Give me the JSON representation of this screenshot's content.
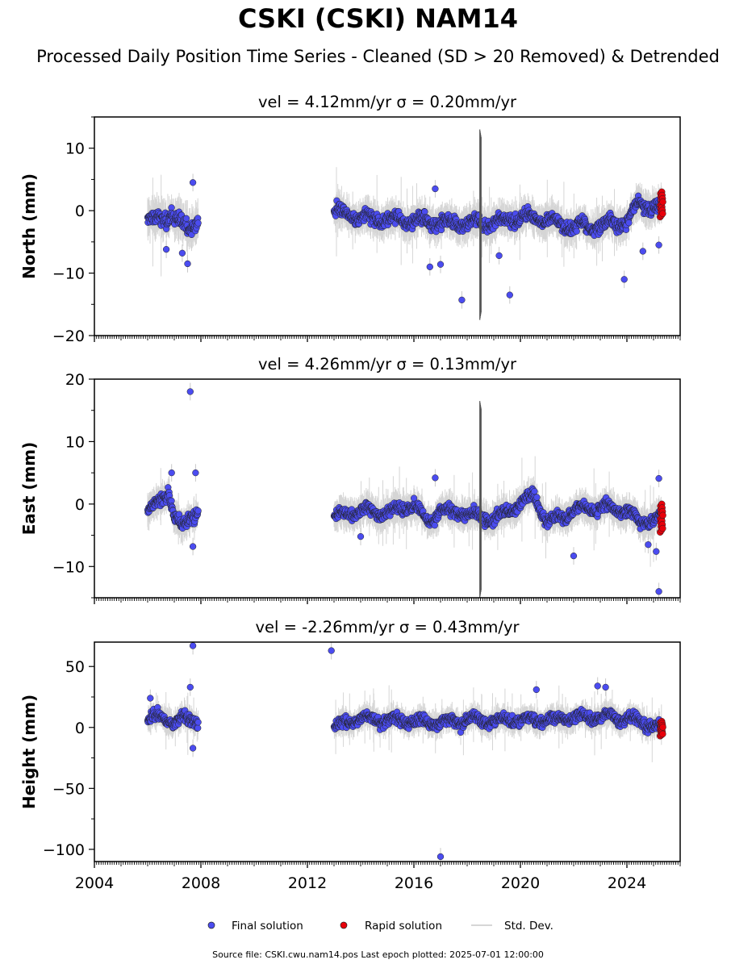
{
  "title": "CSKI (CSKI) NAM14",
  "subtitle": "Processed Daily Position Time Series - Cleaned (SD > 20 Removed) & Detrended",
  "source_note": "Source file: CSKI.cwu.nam14.pos  Last epoch plotted: 2025-07-01 12:00:00",
  "colors": {
    "final": "#4b4cf0",
    "rapid": "#e8000b",
    "std": "#c8c8c8",
    "outline": "#222222"
  },
  "legend": {
    "final": "Final solution",
    "rapid": "Rapid solution",
    "std": "Std. Dev."
  },
  "chart_data": [
    {
      "type": "scatter",
      "title": "vel = 4.12mm/yr   σ = 0.20mm/yr",
      "ylabel": "North (mm)",
      "xlim": [
        2004,
        2026
      ],
      "ylim": [
        -20,
        15
      ],
      "yticks": [
        -20,
        -10,
        0,
        10
      ],
      "xticks": [
        2004,
        2008,
        2012,
        2016,
        2020,
        2024
      ],
      "segments": [
        {
          "x0": 2006.0,
          "x1": 2007.9,
          "path": [
            [
              2006.0,
              -1
            ],
            [
              2006.3,
              -2
            ],
            [
              2006.6,
              -1
            ],
            [
              2006.9,
              -0.5
            ],
            [
              2007.2,
              -2
            ],
            [
              2007.5,
              -3
            ],
            [
              2007.9,
              -1
            ]
          ],
          "noise": 1.6,
          "sd": 2.5
        },
        {
          "x0": 2013.0,
          "x1": 2025.3,
          "path": [
            [
              2013.0,
              0
            ],
            [
              2014.0,
              -1
            ],
            [
              2015.0,
              -1.5
            ],
            [
              2016.0,
              -1.5
            ],
            [
              2017.0,
              -2
            ],
            [
              2018.0,
              -2
            ],
            [
              2019.0,
              -2
            ],
            [
              2020.0,
              -1
            ],
            [
              2021.0,
              -1.5
            ],
            [
              2022.0,
              -2.5
            ],
            [
              2023.0,
              -2.5
            ],
            [
              2024.0,
              -1.5
            ],
            [
              2024.5,
              1.5
            ],
            [
              2025.0,
              0.5
            ],
            [
              2025.3,
              0
            ]
          ],
          "noise": 1.4,
          "sd": 2.2
        }
      ],
      "outliers": [
        {
          "x": 2007.7,
          "y": 4.5
        },
        {
          "x": 2006.7,
          "y": -6.2
        },
        {
          "x": 2007.5,
          "y": -8.5
        },
        {
          "x": 2007.3,
          "y": -6.8
        },
        {
          "x": 2016.8,
          "y": 3.5
        },
        {
          "x": 2016.6,
          "y": -9.0
        },
        {
          "x": 2017.0,
          "y": -8.6
        },
        {
          "x": 2017.8,
          "y": -14.3
        },
        {
          "x": 2019.2,
          "y": -7.2
        },
        {
          "x": 2019.6,
          "y": -13.5
        },
        {
          "x": 2023.9,
          "y": -11.0
        },
        {
          "x": 2024.6,
          "y": -6.5
        },
        {
          "x": 2025.2,
          "y": -5.5
        }
      ],
      "spikes": [
        {
          "x": 2018.5,
          "lo": -17.5,
          "hi": 13.0
        }
      ],
      "rapid": {
        "x0": 2025.25,
        "x1": 2025.5,
        "y_min": -1,
        "y_max": 3
      }
    },
    {
      "type": "scatter",
      "title": "vel = 4.26mm/yr   σ = 0.13mm/yr",
      "ylabel": "East (mm)",
      "xlim": [
        2004,
        2026
      ],
      "ylim": [
        -15,
        20
      ],
      "yticks": [
        -10,
        0,
        10,
        20
      ],
      "xticks": [
        2004,
        2008,
        2012,
        2016,
        2020,
        2024
      ],
      "segments": [
        {
          "x0": 2006.0,
          "x1": 2007.9,
          "path": [
            [
              2006.0,
              -1
            ],
            [
              2006.4,
              0
            ],
            [
              2006.8,
              2
            ],
            [
              2007.0,
              -2
            ],
            [
              2007.3,
              -4
            ],
            [
              2007.6,
              -2
            ],
            [
              2007.9,
              -1
            ]
          ],
          "noise": 1.3,
          "sd": 2.0
        },
        {
          "x0": 2013.0,
          "x1": 2025.3,
          "path": [
            [
              2013.0,
              -2
            ],
            [
              2014.0,
              -1
            ],
            [
              2015.0,
              -1.5
            ],
            [
              2016.0,
              0
            ],
            [
              2016.5,
              -3
            ],
            [
              2017.0,
              -1
            ],
            [
              2018.0,
              -1.5
            ],
            [
              2019.0,
              -2.5
            ],
            [
              2020.0,
              0
            ],
            [
              2020.5,
              1.5
            ],
            [
              2021.0,
              -3
            ],
            [
              2022.0,
              -1
            ],
            [
              2023.0,
              -0.5
            ],
            [
              2024.0,
              -1
            ],
            [
              2024.5,
              -3
            ],
            [
              2025.3,
              -2
            ]
          ],
          "noise": 1.2,
          "sd": 2.0
        }
      ],
      "outliers": [
        {
          "x": 2007.6,
          "y": 18.0
        },
        {
          "x": 2006.9,
          "y": 5.0
        },
        {
          "x": 2007.8,
          "y": 5.0
        },
        {
          "x": 2007.7,
          "y": -6.8
        },
        {
          "x": 2016.8,
          "y": 4.2
        },
        {
          "x": 2014.0,
          "y": -5.2
        },
        {
          "x": 2022.0,
          "y": -8.3
        },
        {
          "x": 2024.8,
          "y": -6.5
        },
        {
          "x": 2025.1,
          "y": -7.6
        },
        {
          "x": 2025.2,
          "y": 4.1
        },
        {
          "x": 2025.2,
          "y": -14.0
        }
      ],
      "spikes": [
        {
          "x": 2018.5,
          "lo": -15.0,
          "hi": 16.5
        }
      ],
      "rapid": {
        "x0": 2025.25,
        "x1": 2025.5,
        "y_min": -4.5,
        "y_max": 0
      }
    },
    {
      "type": "scatter",
      "title": "vel = -2.26mm/yr   σ = 0.43mm/yr",
      "ylabel": "Height (mm)",
      "xlim": [
        2004,
        2026
      ],
      "ylim": [
        -110,
        70
      ],
      "yticks": [
        -100,
        -50,
        0,
        50
      ],
      "xticks": [
        2004,
        2008,
        2012,
        2016,
        2020,
        2024
      ],
      "segments": [
        {
          "x0": 2006.0,
          "x1": 2007.9,
          "path": [
            [
              2006.0,
              5
            ],
            [
              2006.5,
              10
            ],
            [
              2007.0,
              3
            ],
            [
              2007.5,
              8
            ],
            [
              2007.9,
              5
            ]
          ],
          "noise": 6.5,
          "sd": 8.0
        },
        {
          "x0": 2013.0,
          "x1": 2025.3,
          "path": [
            [
              2013.0,
              0
            ],
            [
              2014.0,
              8
            ],
            [
              2015.0,
              6
            ],
            [
              2016.0,
              5
            ],
            [
              2017.0,
              4
            ],
            [
              2018.0,
              6
            ],
            [
              2019.0,
              5
            ],
            [
              2020.0,
              7
            ],
            [
              2021.0,
              6
            ],
            [
              2022.0,
              8
            ],
            [
              2023.0,
              9
            ],
            [
              2024.0,
              8
            ],
            [
              2024.8,
              2
            ],
            [
              2025.3,
              0
            ]
          ],
          "noise": 6.0,
          "sd": 8.0
        }
      ],
      "outliers": [
        {
          "x": 2007.7,
          "y": 67
        },
        {
          "x": 2007.6,
          "y": 33
        },
        {
          "x": 2007.7,
          "y": -17
        },
        {
          "x": 2012.9,
          "y": 63
        },
        {
          "x": 2017.0,
          "y": -106
        },
        {
          "x": 2020.6,
          "y": 31
        },
        {
          "x": 2022.9,
          "y": 34
        },
        {
          "x": 2023.2,
          "y": 33
        },
        {
          "x": 2006.1,
          "y": 24
        }
      ],
      "spikes": [],
      "rapid": {
        "x0": 2025.25,
        "x1": 2025.5,
        "y_min": -7,
        "y_max": 5
      }
    }
  ]
}
